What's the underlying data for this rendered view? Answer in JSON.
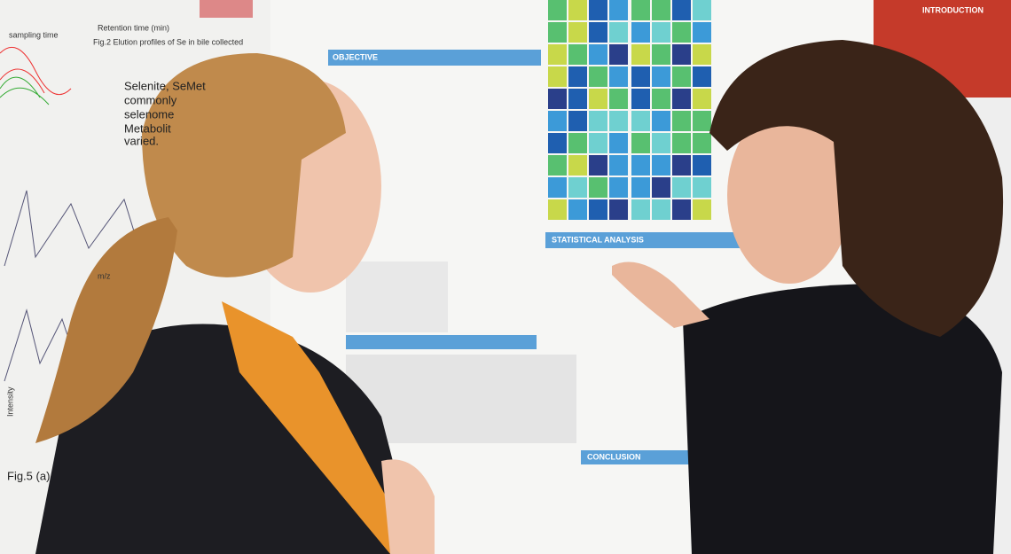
{
  "left_poster": {
    "axis_label": "Retention time (min)",
    "caption": "Fig.2 Elution profiles of Se in bile collected",
    "legend": "sampling time",
    "bullets": [
      "Selenite, SeMet",
      "commonly",
      "selenome",
      "Metabolit",
      "varied."
    ],
    "fig5": "Fig.5 (a)",
    "intensity": "Intensity",
    "mz": "m/z"
  },
  "center_poster": {
    "headings": [
      "OBJECTIVE",
      "STATISTICAL ANALYSIS",
      "CONCLUSION"
    ]
  },
  "right_poster": {
    "heading": "INTRODUCTION"
  }
}
